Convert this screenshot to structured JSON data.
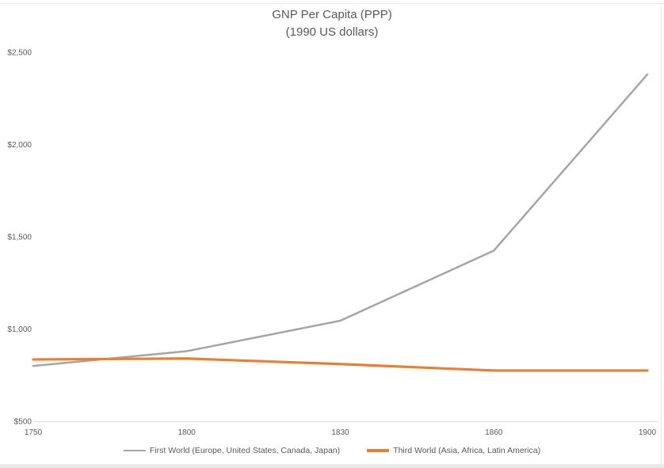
{
  "chart_data": {
    "type": "line",
    "title": "GNP Per Capita (PPP)",
    "subtitle": "(1990 US dollars)",
    "categories": [
      "1750",
      "1800",
      "1830",
      "1860",
      "1900"
    ],
    "series": [
      {
        "name": "First World (Europe, United States, Canada, Japan)",
        "color": "#a5a5a5",
        "stroke_width": 2.5,
        "values": [
          800,
          880,
          1045,
          1425,
          2380
        ]
      },
      {
        "name": "Third World (Asia, Africa, Latin America)",
        "color": "#ed7d31",
        "stroke_width": 3.2,
        "values": [
          835,
          840,
          810,
          775,
          775
        ]
      }
    ],
    "y_ticks": [
      500,
      1000,
      1500,
      2000,
      2500
    ],
    "y_tick_labels": [
      "$500",
      "$1,000",
      "$1,500",
      "$2,000",
      "$2,500"
    ],
    "x_tick_labels": [
      "1750",
      "1800",
      "1830",
      "1860",
      "1900"
    ],
    "ylim": [
      500,
      2500
    ],
    "grid": false,
    "legend_position": "bottom",
    "axis_color": "#d9d9d9",
    "text_color": "#595959"
  }
}
